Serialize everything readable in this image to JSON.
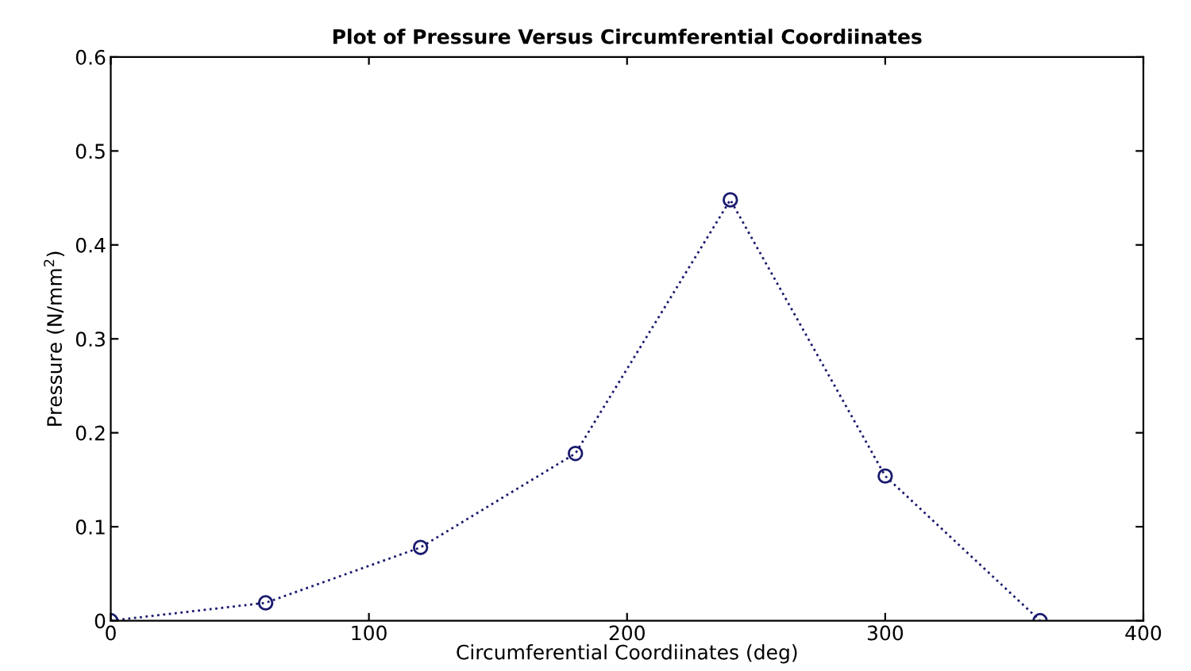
{
  "chart_data": {
    "type": "line",
    "title": "Plot of Pressure Versus Circumferential Coordiinates",
    "xlabel": "Circumferential Coordiinates (deg)",
    "ylabel": "Pressure (N/mm$^{2}$)",
    "x": [
      0,
      60,
      120,
      180,
      240,
      300,
      360
    ],
    "series": [
      {
        "color": "#1a1a6e",
        "values": [
          0,
          0.019,
          0.078,
          0.178,
          0.448,
          0.154,
          0
        ]
      }
    ],
    "xlim": [
      0,
      400
    ],
    "xticks": [
      0,
      100,
      200,
      300,
      400
    ],
    "ylim": [
      0,
      0.6
    ],
    "yticks": [
      0,
      0.1,
      0.2,
      0.3,
      0.4,
      0.5,
      0.6
    ],
    "marker": "circle",
    "line_style": "dotted",
    "grid": false,
    "legend": false
  }
}
